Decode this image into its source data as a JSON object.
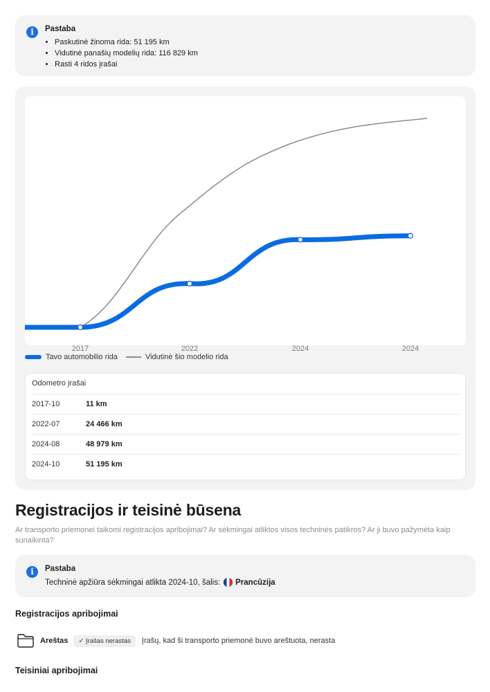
{
  "note1": {
    "title": "Pastaba",
    "items": [
      "Paskutinė žinoma rida: 51 195 km",
      "Vidutinė panašių modelių rida: 116 829 km",
      "Rasti 4 ridos įrašai"
    ]
  },
  "chart_data": {
    "type": "line",
    "categories": [
      "2017",
      "2022",
      "2024",
      "2024"
    ],
    "series": [
      {
        "name": "Tavo automobilio rida",
        "color": "#0b6be0",
        "values": [
          11,
          24466,
          48979,
          51195
        ]
      }
    ],
    "legend_position": "bottom-left",
    "grid": false
  },
  "legend": {
    "own": "Tavo automobilio rida",
    "avg": "Vidutinė šio modelio rida"
  },
  "odometer": {
    "title": "Odometro įrašai",
    "rows": [
      {
        "date": "2017-10",
        "value": "11 km"
      },
      {
        "date": "2022-07",
        "value": "24 466 km"
      },
      {
        "date": "2024-08",
        "value": "48 979 km"
      },
      {
        "date": "2024-10",
        "value": "51 195 km"
      }
    ]
  },
  "registration": {
    "heading": "Registracijos ir teisinė būsena",
    "subtitle": "Ar transporto priemonei taikomi registracijos apribojimai? Ar sėkmingai atliktos visos techninės patikros? Ar ji buvo pažymėta kaip sunaikinta?"
  },
  "note2": {
    "title": "Pastaba",
    "text": "Techninė apžiūra sėkmingai atlikta 2024-10, šalis:",
    "country": "Prancūzija"
  },
  "restrictions": {
    "heading": "Registracijos apribojimai",
    "arrest_label": "Areštas",
    "arrest_badge": "✓ Įrašas nerastas",
    "arrest_desc": "Įrašų, kad ši transporto priemonė buvo areštuota, nerasta"
  },
  "legal": {
    "heading": "Teisiniai apribojimai"
  },
  "colors": {
    "accent": "#0b6be0",
    "info": "#1a6fe0",
    "average_line": "#8a8a8f"
  }
}
